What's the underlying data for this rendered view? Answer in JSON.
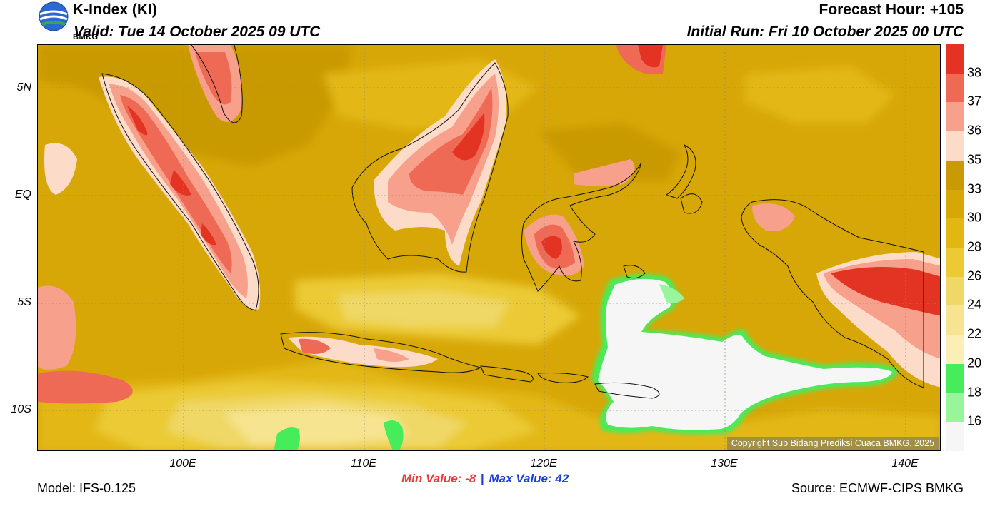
{
  "header": {
    "title": "K-Index (KI)",
    "valid": "Valid: Tue 14 October 2025 09 UTC",
    "forecast_hour": "Forecast Hour: +105",
    "initial_run": "Initial Run: Fri 10 October 2025 00 UTC",
    "logo_text": "BMKG"
  },
  "axes": {
    "lat_ticks": [
      "5N",
      "EQ",
      "5S",
      "10S"
    ],
    "lon_ticks": [
      "100E",
      "110E",
      "120E",
      "130E",
      "140E"
    ]
  },
  "colorbar": {
    "labels": [
      "38",
      "37",
      "36",
      "35",
      "33",
      "30",
      "28",
      "26",
      "24",
      "22",
      "20",
      "18",
      "16"
    ],
    "colors": [
      "#e33322",
      "#ef6a55",
      "#f7a08c",
      "#fcdcc8",
      "#c99a06",
      "#d7a707",
      "#e2b714",
      "#ebca34",
      "#f0d866",
      "#f6e491",
      "#fbefb6",
      "#46ec5a",
      "#98f59c",
      "#f6f6f6"
    ]
  },
  "copyright": "Copyright Sub Bidang Prediksi Cuaca BMKG, 2025",
  "stats": {
    "min_label": "Min Value:",
    "min_value": "-8",
    "separator": "|",
    "max_label": "Max Value:",
    "max_value": "42",
    "min_color": "#ea3a3a",
    "max_color": "#1f3fd8"
  },
  "footer": {
    "model": "Model: IFS-0.125",
    "source": "Source: ECMWF-CIPS BMKG"
  }
}
